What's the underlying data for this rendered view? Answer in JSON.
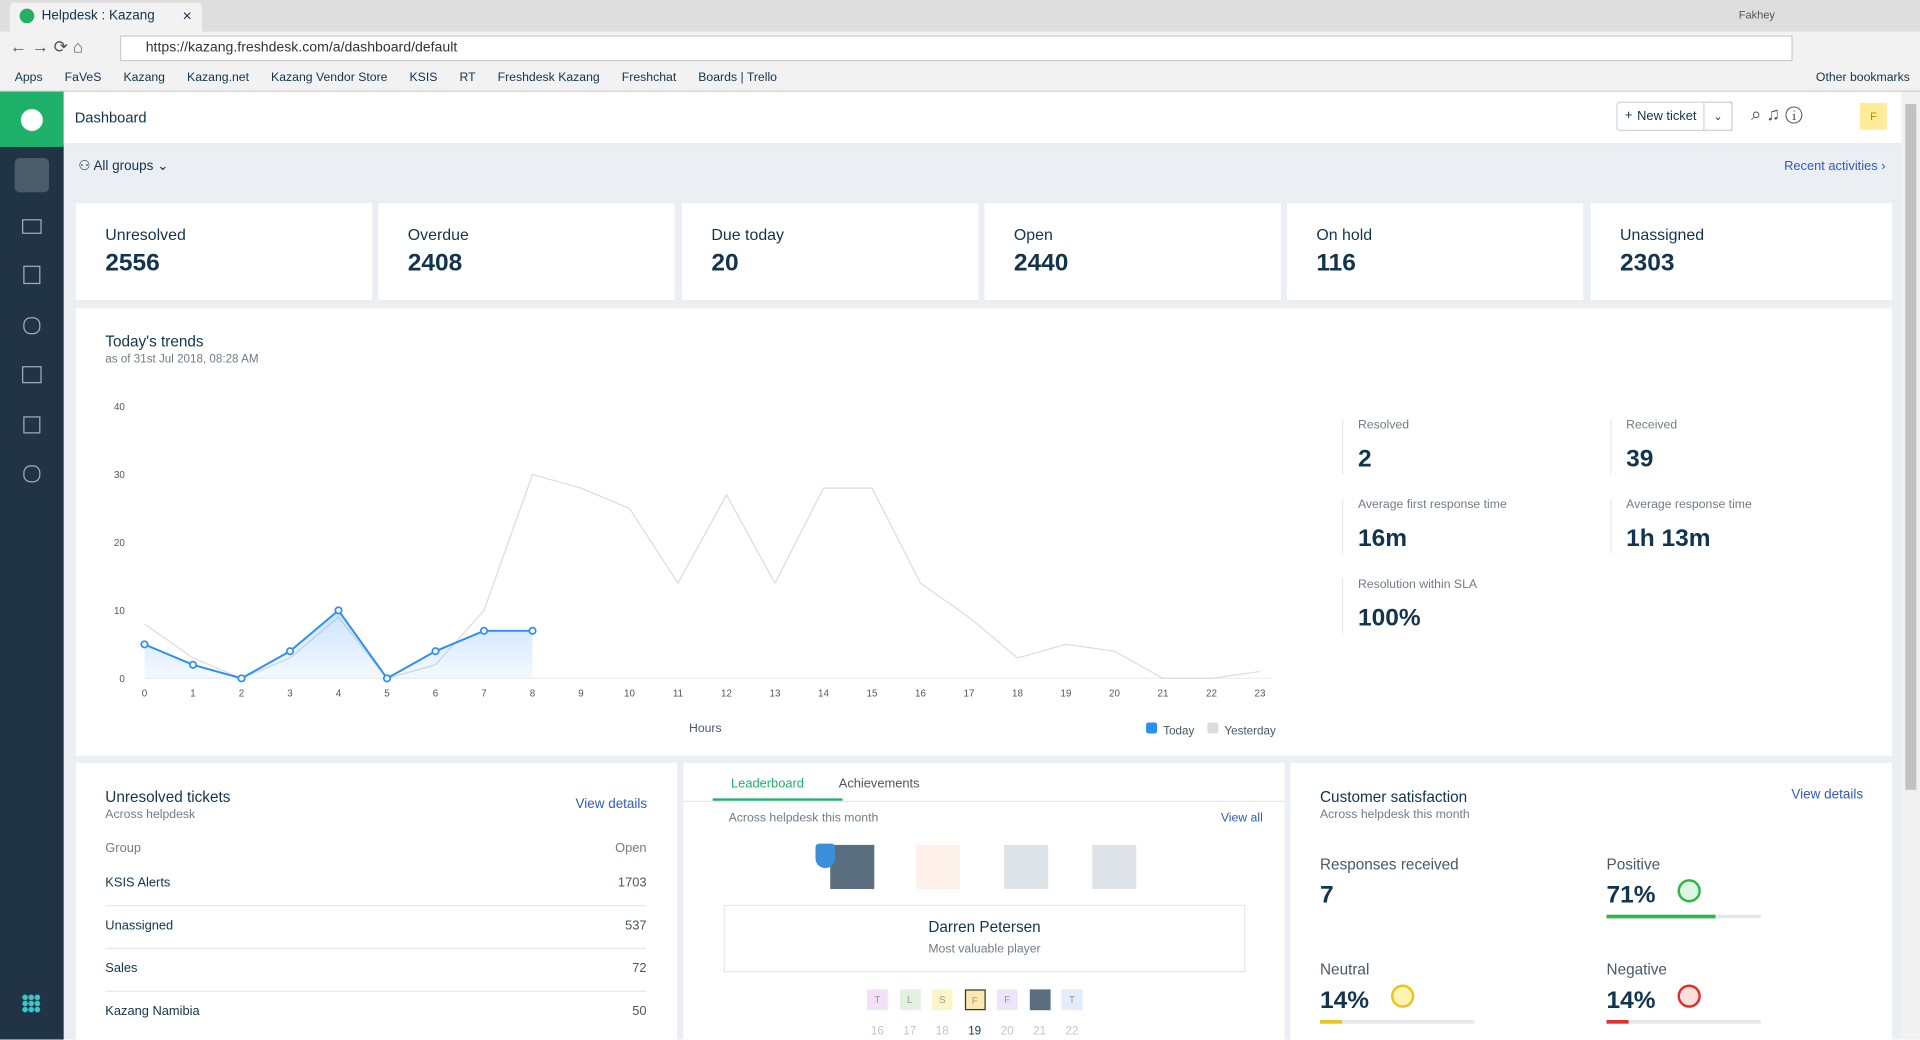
{
  "browser": {
    "tab_title": "Helpdesk : Kazang",
    "user": "Fakhey",
    "url": "https://kazang.freshdesk.com/a/dashboard/default",
    "bookmarks": [
      "Apps",
      "FaVeS",
      "Kazang",
      "Kazang.net",
      "Kazang Vendor Store",
      "KSIS",
      "RT",
      "Freshdesk Kazang",
      "Freshchat",
      "Boards | Trello"
    ],
    "other_bookmarks": "Other bookmarks"
  },
  "header": {
    "title": "Dashboard",
    "new_ticket": "New ticket",
    "avatar": "F"
  },
  "filter": {
    "groups": "All groups",
    "recent": "Recent activities"
  },
  "cards": [
    {
      "label": "Unresolved",
      "value": "2556"
    },
    {
      "label": "Overdue",
      "value": "2408"
    },
    {
      "label": "Due today",
      "value": "20"
    },
    {
      "label": "Open",
      "value": "2440"
    },
    {
      "label": "On hold",
      "value": "116"
    },
    {
      "label": "Unassigned",
      "value": "2303"
    }
  ],
  "trends": {
    "title": "Today's trends",
    "subtitle": "as of 31st Jul 2018, 08:28 AM",
    "chart": {
      "type": "line",
      "x": [
        0,
        1,
        2,
        3,
        4,
        5,
        6,
        7,
        8,
        9,
        10,
        11,
        12,
        13,
        14,
        15,
        16,
        17,
        18,
        19,
        20,
        21,
        22,
        23
      ],
      "xlim": [
        0,
        23
      ],
      "xlabel": "Hours",
      "ylim": [
        0,
        40
      ],
      "yticks": [
        0,
        10,
        20,
        30,
        40
      ],
      "series": [
        {
          "name": "Yesterday",
          "color": "#dcdcdc",
          "values": [
            8,
            3,
            0,
            3,
            9,
            0,
            2,
            10,
            30,
            28,
            25,
            14,
            27,
            14,
            28,
            28,
            14,
            9,
            3,
            5,
            4,
            0,
            0,
            1
          ]
        },
        {
          "name": "Today",
          "color": "#2c8ef8",
          "values": [
            5,
            2,
            0,
            4,
            10,
            0,
            4,
            7,
            7,
            null,
            null,
            null,
            null,
            null,
            null,
            null,
            null,
            null,
            null,
            null,
            null,
            null,
            null,
            null
          ]
        }
      ]
    },
    "stats": [
      {
        "label": "Resolved",
        "value": "2"
      },
      {
        "label": "Received",
        "value": "39"
      },
      {
        "label": "Average first response time",
        "value": "16m"
      },
      {
        "label": "Average response time",
        "value": "1h 13m"
      },
      {
        "label": "Resolution within SLA",
        "value": "100%"
      }
    ]
  },
  "unresolved": {
    "title": "Unresolved tickets",
    "subtitle": "Across helpdesk",
    "link": "View details",
    "columns": [
      "Group",
      "Open"
    ],
    "rows": [
      [
        "KSIS Alerts",
        "1703"
      ],
      [
        "Unassigned",
        "537"
      ],
      [
        "Sales",
        "72"
      ],
      [
        "Kazang Namibia",
        "50"
      ]
    ]
  },
  "leaderboard": {
    "tabs": [
      "Leaderboard",
      "Achievements"
    ],
    "subtitle": "Across helpdesk this month",
    "link": "View all",
    "name": "Darren Petersen",
    "role": "Most valuable player",
    "days": [
      {
        "badge": "T",
        "day": "16"
      },
      {
        "badge": "L",
        "day": "17"
      },
      {
        "badge": "S",
        "day": "18"
      },
      {
        "badge": "F",
        "day": "19"
      },
      {
        "badge": "F",
        "day": "20"
      },
      {
        "day": "21"
      },
      {
        "badge": "T",
        "day": "22"
      }
    ]
  },
  "satisfaction": {
    "title": "Customer satisfaction",
    "subtitle": "Across helpdesk this month",
    "link": "View details",
    "responses_label": "Responses received",
    "responses": "7",
    "items": [
      {
        "name": "Positive",
        "value": 71,
        "label": "71%",
        "color": "#2cb846"
      },
      {
        "name": "Neutral",
        "value": 14,
        "label": "14%",
        "color": "#e8c51c"
      },
      {
        "name": "Negative",
        "value": 14,
        "label": "14%",
        "color": "#e0302a"
      }
    ]
  }
}
